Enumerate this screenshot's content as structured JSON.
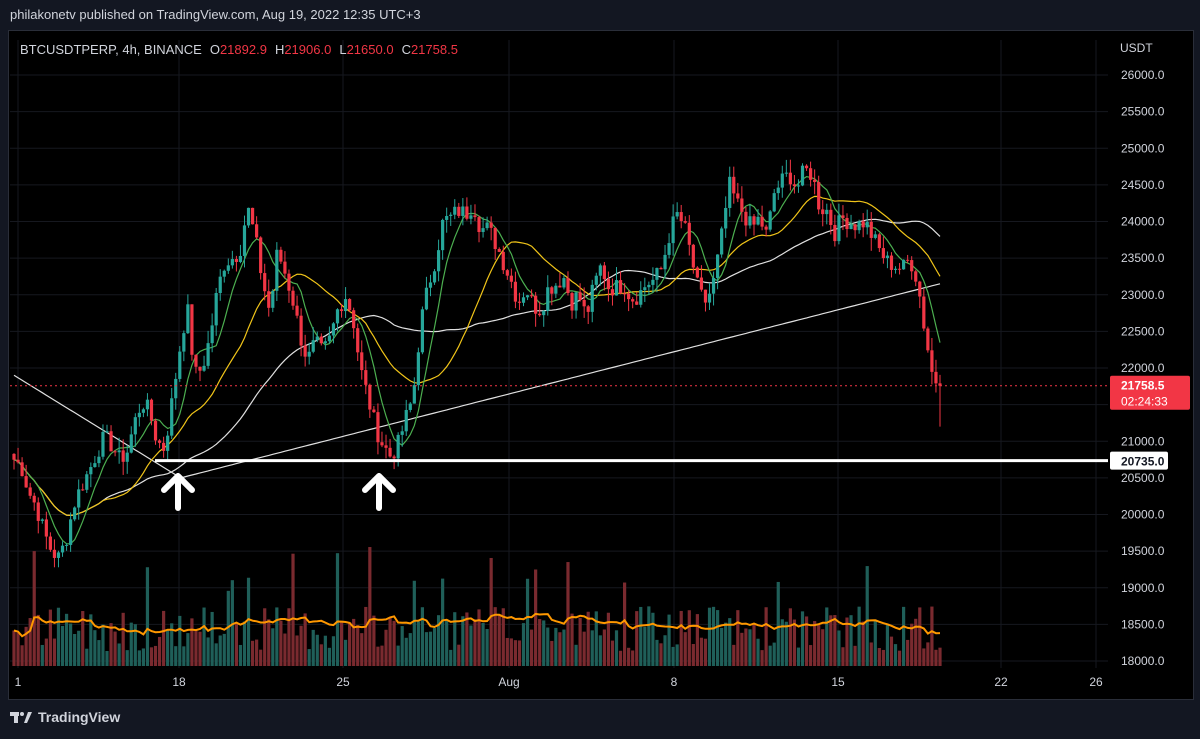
{
  "header": {
    "publisher": "philakonetv published on TradingView.com, Aug 19, 2022 12:35 UTC+3"
  },
  "legend": {
    "symbol": "BTCUSDTPERP, 4h, BINANCE",
    "o_label": "O",
    "o": "21892.9",
    "h_label": "H",
    "h": "21906.0",
    "l_label": "L",
    "l": "21650.0",
    "c_label": "C",
    "c": "21758.5"
  },
  "footer": {
    "brand": "TradingView",
    "logo_icon": "tradingview-logo-icon"
  },
  "colors": {
    "up": "#26a69a",
    "down": "#f23645",
    "ma_green": "#4caf50",
    "ma_yellow": "#f0c419",
    "ma_white": "#ffffff",
    "vol_ma": "#ff9800",
    "support": "#ffffff",
    "price_line": "#f23645"
  },
  "chart_data": {
    "type": "candlestick",
    "title": "BTCUSDTPERP, 4h, BINANCE",
    "currency": "USDT",
    "y_ticks": [
      "26000.0",
      "25500.0",
      "25000.0",
      "24500.0",
      "24000.0",
      "23500.0",
      "23000.0",
      "22500.0",
      "22000.0",
      "21500.0",
      "21000.0",
      "20500.0",
      "20000.0",
      "19500.0",
      "19000.0",
      "18500.0",
      "18000.0"
    ],
    "ylim": [
      18000,
      26000
    ],
    "x_ticks": [
      "1",
      "18",
      "25",
      "Aug",
      "8",
      "15",
      "22",
      "26"
    ],
    "current_price": {
      "value": "21758.5",
      "countdown": "02:24:33"
    },
    "support_level": {
      "value": "20735.0"
    },
    "ohlc_last": {
      "open": 21892.9,
      "high": 21906.0,
      "low": 21650.0,
      "close": 21758.5
    },
    "annotations": [
      "up-arrow",
      "up-arrow"
    ],
    "price_path": [
      20750,
      20650,
      20300,
      20100,
      19750,
      19500,
      19400,
      19700,
      20150,
      20400,
      20600,
      20850,
      21050,
      20950,
      20750,
      20850,
      21250,
      21550,
      21400,
      21000,
      20900,
      21550,
      22250,
      22850,
      21900,
      22000,
      22400,
      23050,
      23450,
      23500,
      23600,
      24200,
      23800,
      23200,
      22750,
      23600,
      23300,
      22950,
      22450,
      22100,
      22350,
      22200,
      22400,
      22800,
      23000,
      22700,
      22000,
      21600,
      21200,
      20950,
      20800,
      20950,
      21300,
      21600,
      22600,
      23100,
      23500,
      24000,
      24050,
      24150,
      24100,
      24250,
      23900,
      23900,
      23700,
      23450,
      23200,
      22900,
      23100,
      22850,
      22800,
      23100,
      23150,
      23250,
      22900,
      23000,
      22700,
      23100,
      23400,
      23100,
      23100,
      23150,
      22950,
      23000,
      23150,
      23200,
      23350,
      23800,
      24100,
      23950,
      23500,
      23000,
      22900,
      23200,
      23800,
      24500,
      24250,
      24100,
      23900,
      24050,
      23800,
      24400,
      24550,
      24650,
      24450,
      24700,
      24650,
      24200,
      24150,
      23850,
      24050,
      24000,
      23950,
      24000,
      23800,
      23600,
      23450,
      23400,
      23350,
      23500,
      23200,
      22500,
      21900,
      21758.5
    ],
    "volume_max_pct": 1.0
  }
}
